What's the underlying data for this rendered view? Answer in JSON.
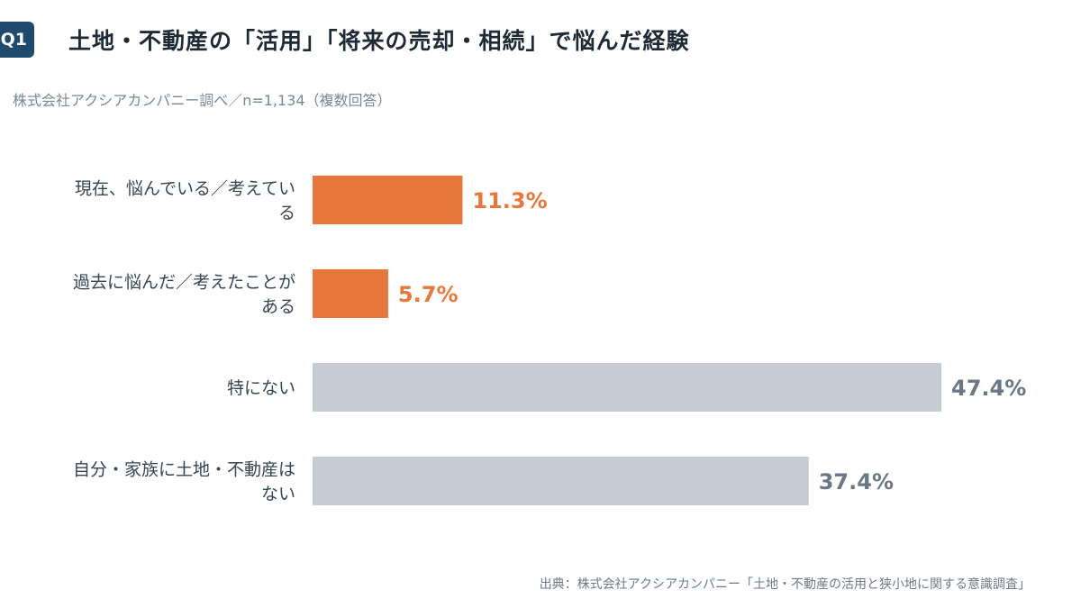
{
  "header": {
    "badge": "Q1",
    "title": "土地・不動産の「活用」「将来の売却・相続」で悩んだ経験",
    "subtitle": "株式会社アクシアカンパニー調べ／n=1,134（複数回答）"
  },
  "footer": {
    "source": "出典：株式会社アクシアカンパニー「土地・不動産の活用と狭小地に関する意識調査」"
  },
  "colors": {
    "accent": "#e8773c",
    "neutral": "#c5ccd3",
    "neutral_text": "#6b7785",
    "title": "#1f2a36",
    "badge": "#1f4a6e"
  },
  "chart_data": {
    "type": "bar",
    "orientation": "horizontal",
    "title": "土地・不動産の「活用」「将来の売却・相続」で悩んだ経験",
    "subtitle": "株式会社アクシアカンパニー調べ／n=1,134（複数回答）",
    "xlabel": "",
    "ylabel": "",
    "unit": "%",
    "xlim": [
      0,
      47.4
    ],
    "grid": false,
    "categories": [
      [
        "現在、悩んでいる／考えてい",
        "る"
      ],
      [
        "過去に悩んだ／考えたことが",
        "ある"
      ],
      [
        "特にない"
      ],
      [
        "自分・家族に土地・不動産は",
        "ない"
      ]
    ],
    "values": [
      11.3,
      5.7,
      47.4,
      37.4
    ],
    "labels": [
      "11.3%",
      "5.7%",
      "47.4%",
      "37.4%"
    ],
    "highlight": [
      true,
      true,
      false,
      false
    ]
  }
}
